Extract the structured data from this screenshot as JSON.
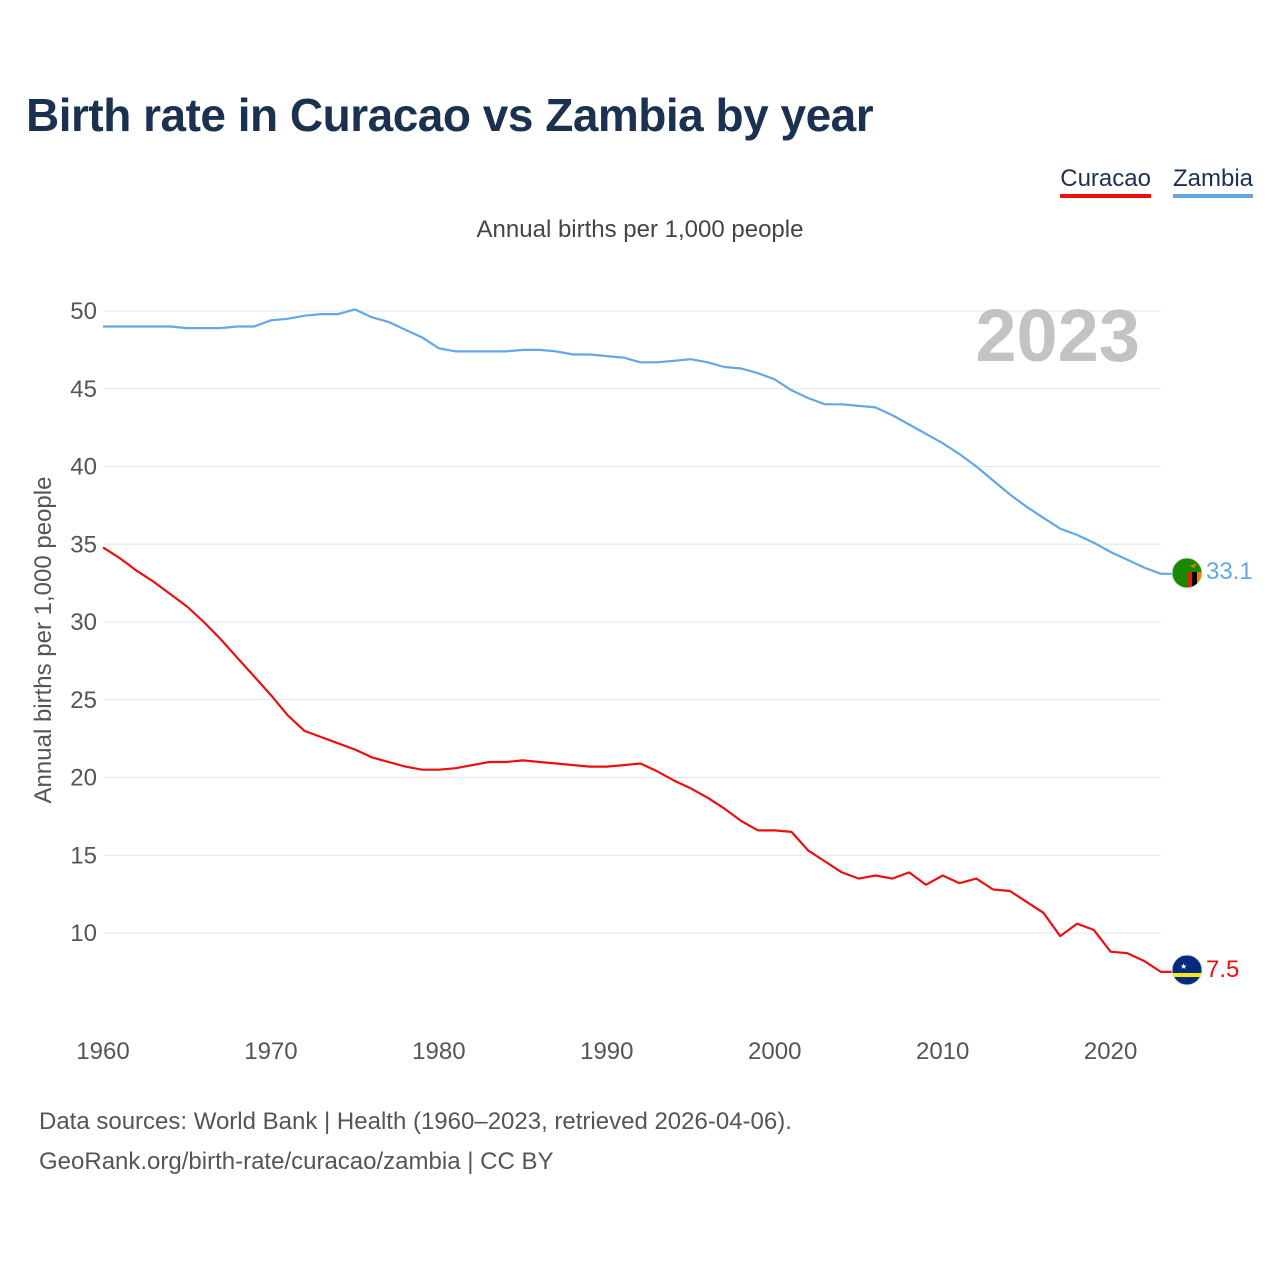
{
  "title": "Birth rate in Curacao vs Zambia by year",
  "subtitle": "Annual births per 1,000 people",
  "legend": [
    {
      "label": "Curacao",
      "color": "#ee0e0e"
    },
    {
      "label": "Zambia",
      "color": "#62a8e8"
    }
  ],
  "year_label": "2023",
  "source_line1": "Data sources: World Bank | Health (1960–2023, retrieved 2026-04-06).",
  "source_line2": "GeoRank.org/birth-rate/curacao/zambia | CC BY",
  "chart_data": {
    "type": "line",
    "title": "Birth rate in Curacao vs Zambia by year",
    "xlabel": "",
    "ylabel": "Annual births per 1,000 people",
    "xlim": [
      1960,
      2023
    ],
    "ylim": [
      5,
      52
    ],
    "yticks": [
      10,
      15,
      20,
      25,
      30,
      35,
      40,
      45,
      50
    ],
    "xticks": [
      1960,
      1970,
      1980,
      1990,
      2000,
      2010,
      2020
    ],
    "grid": true,
    "legend_position": "top-right",
    "x_start": 1960,
    "series": [
      {
        "name": "Curacao",
        "color": "#ee0e0e",
        "end_label": "7.5",
        "flag_icon": "curacao-flag-icon",
        "values": [
          34.8,
          34.1,
          33.3,
          32.6,
          31.8,
          31.0,
          30.0,
          28.9,
          27.7,
          26.5,
          25.3,
          24.0,
          23.0,
          22.6,
          22.2,
          21.8,
          21.3,
          21.0,
          20.7,
          20.5,
          20.5,
          20.6,
          20.8,
          21.0,
          21.0,
          21.1,
          21.0,
          20.9,
          20.8,
          20.7,
          20.7,
          20.8,
          20.9,
          20.4,
          19.8,
          19.3,
          18.7,
          18.0,
          17.2,
          16.6,
          16.6,
          16.5,
          15.3,
          14.6,
          13.9,
          13.5,
          13.7,
          13.5,
          13.9,
          13.1,
          13.7,
          13.2,
          13.5,
          12.8,
          12.7,
          12.0,
          11.3,
          9.8,
          10.6,
          10.2,
          8.8,
          8.7,
          8.2,
          7.5
        ]
      },
      {
        "name": "Zambia",
        "color": "#62a8e8",
        "end_label": "33.1",
        "flag_icon": "zambia-flag-icon",
        "values": [
          49.0,
          49.0,
          49.0,
          49.0,
          49.0,
          48.9,
          48.9,
          48.9,
          49.0,
          49.0,
          49.4,
          49.5,
          49.7,
          49.8,
          49.8,
          50.1,
          49.6,
          49.3,
          48.8,
          48.3,
          47.6,
          47.4,
          47.4,
          47.4,
          47.4,
          47.5,
          47.5,
          47.4,
          47.2,
          47.2,
          47.1,
          47.0,
          46.7,
          46.7,
          46.8,
          46.9,
          46.7,
          46.4,
          46.3,
          46.0,
          45.6,
          44.9,
          44.4,
          44.0,
          44.0,
          43.9,
          43.8,
          43.3,
          42.7,
          42.1,
          41.5,
          40.8,
          40.0,
          39.1,
          38.2,
          37.4,
          36.7,
          36.0,
          35.6,
          35.1,
          34.5,
          34.0,
          33.5,
          33.1
        ]
      }
    ]
  }
}
